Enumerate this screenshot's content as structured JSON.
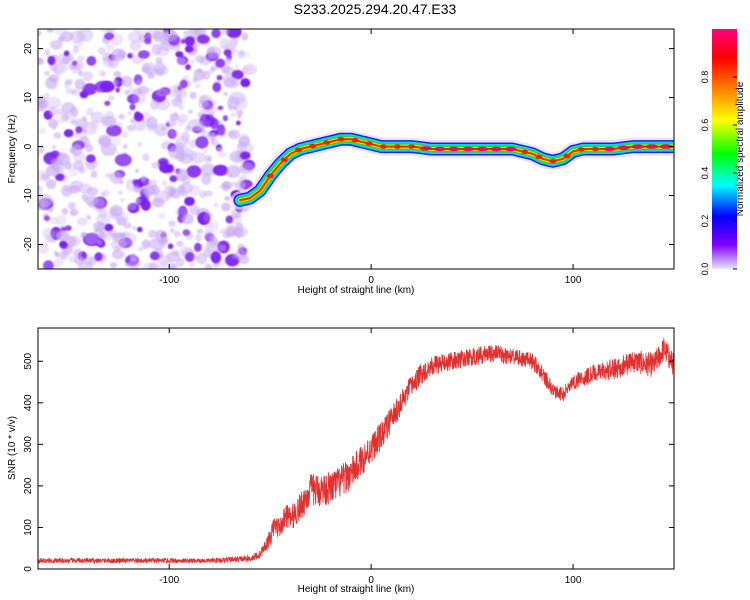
{
  "page": {
    "title": "S233.2025.294.20.47.E33"
  },
  "colors": {
    "axis": "#000000",
    "snr_line": "#e03030",
    "background": "#ffffff"
  },
  "chart_data": [
    {
      "type": "heatmap",
      "title": "S233.2025.294.20.47.E33",
      "xlabel": "Height of straight line (km)",
      "ylabel": "Frequency (Hz)",
      "xlim": [
        -165,
        150
      ],
      "ylim": [
        -25,
        24
      ],
      "xticks": [
        -100,
        0,
        100
      ],
      "yticks": [
        -20,
        -10,
        0,
        10,
        20
      ],
      "colorbar": {
        "label": "Normalized spectral amplitude",
        "range": [
          0,
          1
        ],
        "ticks": [
          "0.0",
          "0.2",
          "0.4",
          "0.6",
          "0.8"
        ],
        "tick_values": [
          0,
          0.2,
          0.4,
          0.6,
          0.8
        ],
        "colormap": [
          "#e6e6fa",
          "#8000ff",
          "#0000ff",
          "#00ffff",
          "#00ff00",
          "#ffff00",
          "#ff8000",
          "#ff0000",
          "#ff0080"
        ]
      },
      "noise_region": {
        "x_range": [
          -165,
          -63
        ],
        "freq_range": [
          -25,
          24
        ],
        "max_amplitude": 0.12
      },
      "ridge": {
        "x": [
          -65,
          -60,
          -55,
          -50,
          -45,
          -40,
          -35,
          -30,
          -25,
          -20,
          -15,
          -10,
          -5,
          0,
          5,
          10,
          15,
          20,
          30,
          40,
          50,
          60,
          70,
          75,
          80,
          85,
          90,
          95,
          100,
          105,
          110,
          120,
          130,
          140,
          150
        ],
        "frequency": [
          -11,
          -10.5,
          -9,
          -6,
          -3.5,
          -1.5,
          -0.5,
          0,
          0.5,
          1,
          1.5,
          1.5,
          1,
          0.5,
          0,
          0,
          0,
          0,
          -0.5,
          -0.5,
          -0.5,
          -0.5,
          -0.5,
          -1,
          -1.5,
          -2.5,
          -3,
          -2.5,
          -1,
          -0.5,
          -0.5,
          -0.5,
          0,
          0,
          0
        ]
      }
    },
    {
      "type": "line",
      "xlabel": "Height of straight line (km)",
      "ylabel": "SNR (10 * v/v)",
      "xlim": [
        -165,
        150
      ],
      "ylim": [
        0,
        580
      ],
      "xticks": [
        -100,
        0,
        100
      ],
      "yticks": [
        0,
        100,
        200,
        300,
        400,
        500
      ],
      "series": [
        {
          "name": "SNR",
          "color": "#e03030",
          "x": [
            -165,
            -140,
            -110,
            -80,
            -60,
            -55,
            -50,
            -48,
            -45,
            -42,
            -40,
            -35,
            -30,
            -25,
            -20,
            -15,
            -10,
            -5,
            0,
            5,
            10,
            15,
            20,
            25,
            30,
            40,
            50,
            60,
            70,
            80,
            85,
            90,
            95,
            100,
            110,
            120,
            130,
            140,
            145,
            150
          ],
          "y": [
            20,
            20,
            20,
            20,
            25,
            35,
            75,
            105,
            100,
            130,
            120,
            150,
            190,
            190,
            195,
            210,
            230,
            260,
            290,
            320,
            360,
            400,
            440,
            470,
            490,
            500,
            510,
            520,
            510,
            500,
            470,
            430,
            420,
            450,
            470,
            480,
            500,
            490,
            530,
            490
          ],
          "noise_amplitude": [
            6,
            6,
            6,
            6,
            8,
            10,
            20,
            25,
            25,
            28,
            30,
            35,
            40,
            40,
            40,
            40,
            38,
            38,
            36,
            34,
            32,
            30,
            28,
            25,
            24,
            22,
            22,
            22,
            20,
            20,
            20,
            18,
            18,
            20,
            22,
            25,
            28,
            30,
            30,
            28
          ]
        }
      ]
    }
  ]
}
